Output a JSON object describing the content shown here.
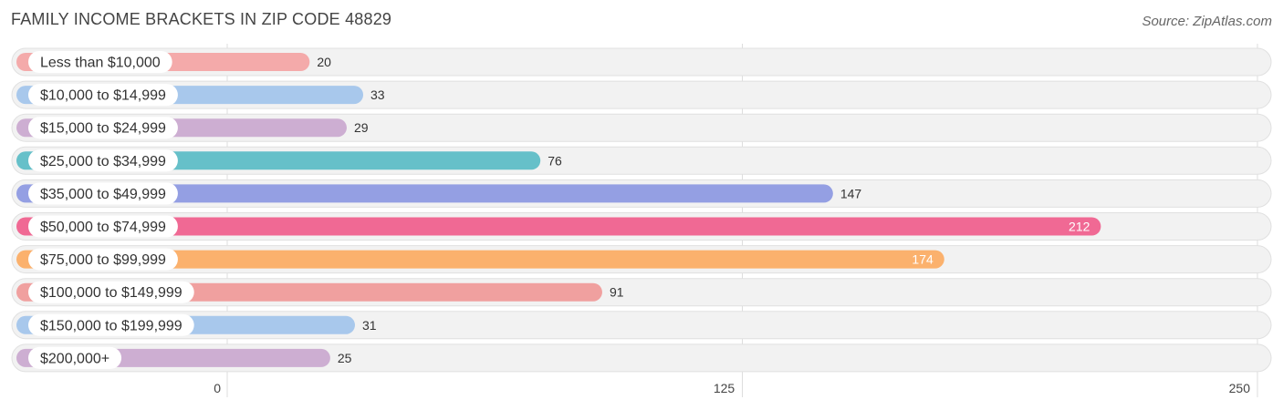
{
  "title": "FAMILY INCOME BRACKETS IN ZIP CODE 48829",
  "source": "Source: ZipAtlas.com",
  "chart_data": {
    "type": "bar",
    "orientation": "horizontal",
    "categories": [
      "Less than $10,000",
      "$10,000 to $14,999",
      "$15,000 to $24,999",
      "$25,000 to $34,999",
      "$35,000 to $49,999",
      "$50,000 to $74,999",
      "$75,000 to $99,999",
      "$100,000 to $149,999",
      "$150,000 to $199,999",
      "$200,000+"
    ],
    "values": [
      20,
      33,
      29,
      76,
      147,
      212,
      174,
      91,
      31,
      25
    ],
    "colors": [
      "#f4aaaa",
      "#a8c8ec",
      "#cdaed2",
      "#66c0c9",
      "#949fe3",
      "#f06994",
      "#fbb16d",
      "#f0a09f",
      "#a8c8ec",
      "#cdaed2"
    ],
    "value_label_inside": [
      false,
      false,
      false,
      false,
      false,
      true,
      true,
      false,
      false,
      false
    ],
    "xticks": [
      0,
      125,
      250
    ],
    "xlim": [
      0,
      250
    ],
    "grid": true
  }
}
